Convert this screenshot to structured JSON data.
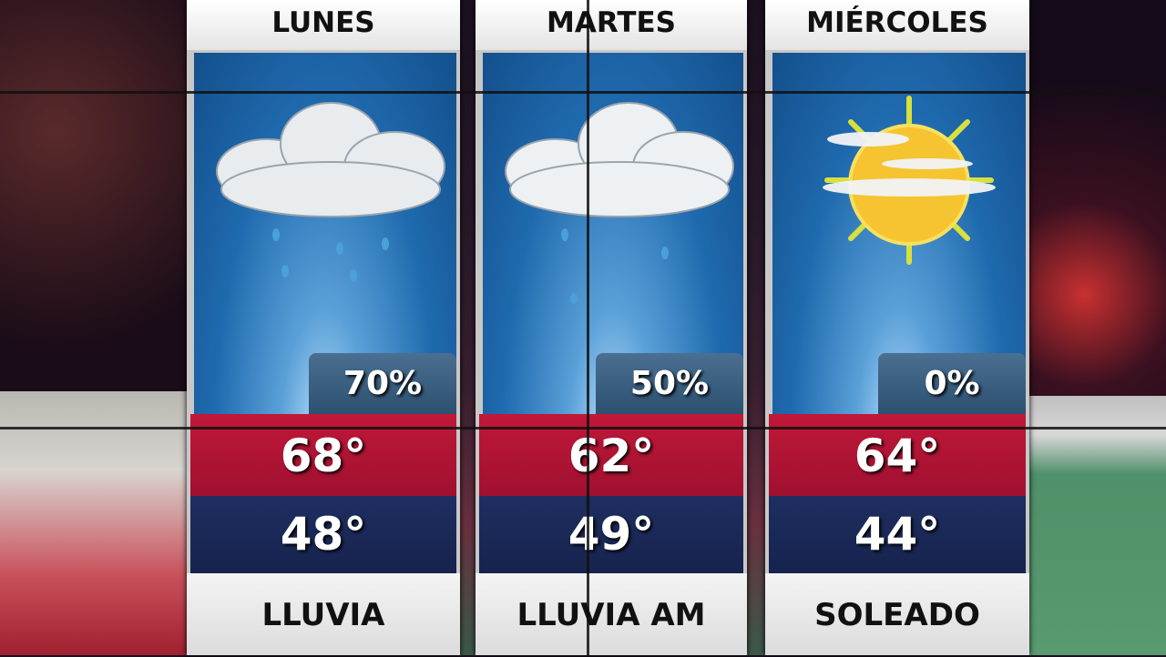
{
  "forecast": {
    "days": [
      {
        "day": "LUNES",
        "precip": "70%",
        "high": "68°",
        "low": "48°",
        "condition": "LLUVIA",
        "icon": "cloud-rain-icon"
      },
      {
        "day": "MARTES",
        "precip": "50%",
        "high": "62°",
        "low": "49°",
        "condition": "LLUVIA AM",
        "icon": "cloud-rain-icon"
      },
      {
        "day": "MIÉRCOLES",
        "precip": "0%",
        "high": "64°",
        "low": "44°",
        "condition": "SOLEADO",
        "icon": "sun-icon"
      }
    ]
  },
  "colors": {
    "high_band": "#b01434",
    "low_band": "#1b2957",
    "sky": "#1f6aae"
  }
}
